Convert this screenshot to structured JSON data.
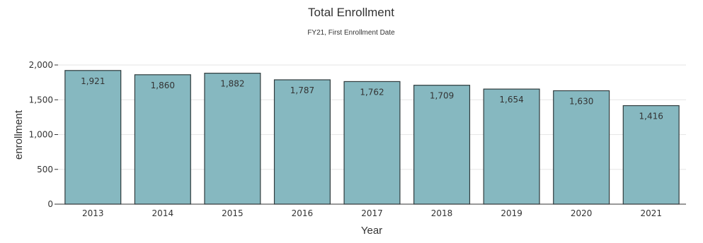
{
  "chart_data": {
    "type": "bar",
    "title": "Total Enrollment",
    "subtitle": "FY21, First Enrollment Date",
    "xlabel": "Year",
    "ylabel": "enrollment",
    "categories": [
      "2013",
      "2014",
      "2015",
      "2016",
      "2017",
      "2018",
      "2019",
      "2020",
      "2021"
    ],
    "values": [
      1921,
      1860,
      1882,
      1787,
      1762,
      1709,
      1654,
      1630,
      1416
    ],
    "data_labels": [
      "1,921",
      "1,860",
      "1,882",
      "1,787",
      "1,762",
      "1,709",
      "1,654",
      "1,630",
      "1,416"
    ],
    "ylim": [
      0,
      2000
    ],
    "yticks": [
      0,
      500,
      1000,
      1500,
      2000
    ],
    "ytick_labels": [
      "0",
      "500",
      "1,000",
      "1,500",
      "2,000"
    ],
    "grid": true,
    "bar_color": "#86b8c0",
    "bar_edge_color": "#2f3b3d"
  }
}
